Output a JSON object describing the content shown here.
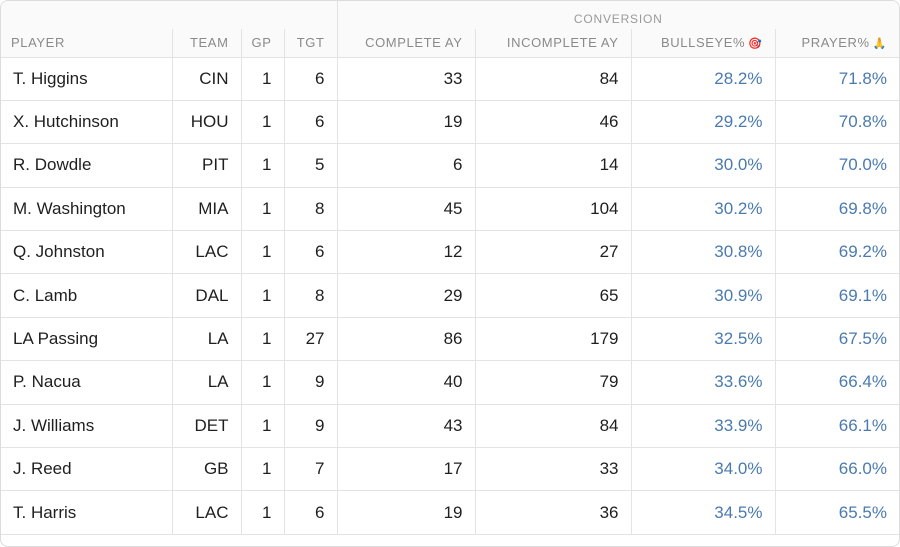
{
  "header": {
    "group_label": "CONVERSION",
    "columns": [
      "PLAYER",
      "TEAM",
      "GP",
      "TGT",
      "COMPLETE AY",
      "INCOMPLETE AY",
      "BULLSEYE%",
      "PRAYER%"
    ],
    "bullseye_icon": "🎯",
    "prayer_icon": "🙏"
  },
  "rows": [
    {
      "player": "T. Higgins",
      "team": "CIN",
      "gp": "1",
      "tgt": "6",
      "complete_ay": "33",
      "incomplete_ay": "84",
      "bullseye": "28.2%",
      "prayer": "71.8%"
    },
    {
      "player": "X. Hutchinson",
      "team": "HOU",
      "gp": "1",
      "tgt": "6",
      "complete_ay": "19",
      "incomplete_ay": "46",
      "bullseye": "29.2%",
      "prayer": "70.8%"
    },
    {
      "player": "R. Dowdle",
      "team": "PIT",
      "gp": "1",
      "tgt": "5",
      "complete_ay": "6",
      "incomplete_ay": "14",
      "bullseye": "30.0%",
      "prayer": "70.0%"
    },
    {
      "player": "M. Washington",
      "team": "MIA",
      "gp": "1",
      "tgt": "8",
      "complete_ay": "45",
      "incomplete_ay": "104",
      "bullseye": "30.2%",
      "prayer": "69.8%"
    },
    {
      "player": "Q. Johnston",
      "team": "LAC",
      "gp": "1",
      "tgt": "6",
      "complete_ay": "12",
      "incomplete_ay": "27",
      "bullseye": "30.8%",
      "prayer": "69.2%"
    },
    {
      "player": "C. Lamb",
      "team": "DAL",
      "gp": "1",
      "tgt": "8",
      "complete_ay": "29",
      "incomplete_ay": "65",
      "bullseye": "30.9%",
      "prayer": "69.1%"
    },
    {
      "player": "LA Passing",
      "team": "LA",
      "gp": "1",
      "tgt": "27",
      "complete_ay": "86",
      "incomplete_ay": "179",
      "bullseye": "32.5%",
      "prayer": "67.5%"
    },
    {
      "player": "P. Nacua",
      "team": "LA",
      "gp": "1",
      "tgt": "9",
      "complete_ay": "40",
      "incomplete_ay": "79",
      "bullseye": "33.6%",
      "prayer": "66.4%"
    },
    {
      "player": "J. Williams",
      "team": "DET",
      "gp": "1",
      "tgt": "9",
      "complete_ay": "43",
      "incomplete_ay": "84",
      "bullseye": "33.9%",
      "prayer": "66.1%"
    },
    {
      "player": "J. Reed",
      "team": "GB",
      "gp": "1",
      "tgt": "7",
      "complete_ay": "17",
      "incomplete_ay": "33",
      "bullseye": "34.0%",
      "prayer": "66.0%"
    },
    {
      "player": "T. Harris",
      "team": "LAC",
      "gp": "1",
      "tgt": "6",
      "complete_ay": "19",
      "incomplete_ay": "36",
      "bullseye": "34.5%",
      "prayer": "65.5%"
    }
  ]
}
